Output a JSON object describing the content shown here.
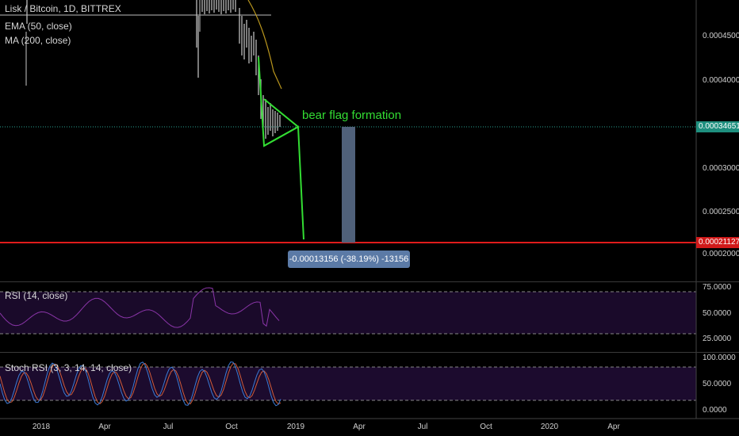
{
  "legend": {
    "symbol": "Lisk / Bitcoin, 1D, BITTREX",
    "ema": "EMA (50, close)",
    "ma": "MA (200, close)"
  },
  "price_axis": {
    "ticks": [
      "0.00045000",
      "0.00040000",
      "0.00030000",
      "0.00025000",
      "0.00020000"
    ],
    "current_price": "0.00034651",
    "target_price": "0.00021127"
  },
  "annotation": {
    "text": "bear flag formation",
    "measure": "-0.00013156 (-38.19%) -13156"
  },
  "rsi": {
    "title": "RSI (14, close)",
    "ticks": [
      "75.0000",
      "50.0000",
      "25.0000"
    ]
  },
  "stoch": {
    "title": "Stoch RSI (3, 3, 14, 14, close)",
    "ticks": [
      "100.0000",
      "50.0000",
      "0.0000"
    ]
  },
  "time_axis": [
    "2018",
    "Apr",
    "Jul",
    "Oct",
    "2019",
    "Apr",
    "Jul",
    "Oct",
    "2020",
    "Apr"
  ],
  "colors": {
    "bear_line": "#33dd33",
    "target_line": "#e01b1b",
    "current_tag": "#1e8f7e",
    "target_tag": "#d11a1a",
    "measure_box": "#5b7aa6",
    "rsi_line": "#8a35a8",
    "indicator_bg": "#1c0b2e",
    "stoch_k": "#3b7bd6",
    "stoch_d": "#d05b3a"
  }
}
